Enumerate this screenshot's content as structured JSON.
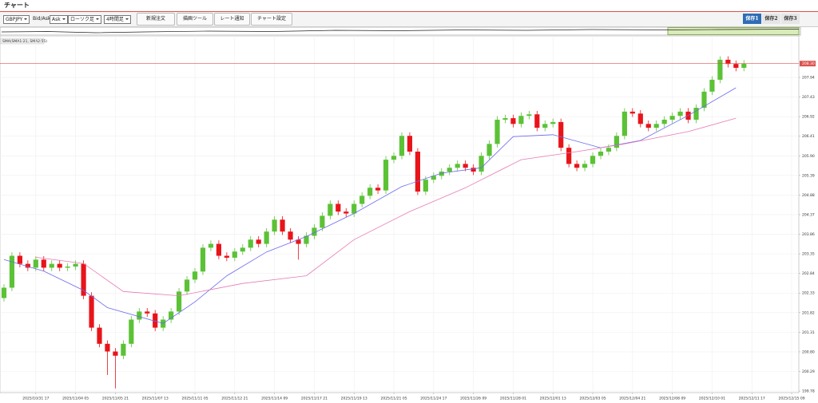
{
  "header": {
    "title": "チャート"
  },
  "toolbar": {
    "symbol": "GBPJPY",
    "bid_ask_label": "Bid/Ask",
    "side": "Ask",
    "chart_style": "ローソク足",
    "timeframe": "4時間足",
    "buttons": [
      "新規注文",
      "描画ツール",
      "レート通知",
      "チャート設定"
    ]
  },
  "saved_tabs": [
    "保存1",
    "保存2",
    "保存3"
  ],
  "chart_data": {
    "type": "candlestick",
    "indicator_label": "SMA(SMA1:21, SMA2:55)",
    "up_color": "#5bc236",
    "down_color": "#e8141a",
    "open": [
      202.2,
      202.47,
      203.3,
      203.09,
      202.99,
      203.2,
      202.99,
      203.09,
      202.99,
      203.02,
      203.09,
      202.26,
      201.43,
      201.01,
      200.81,
      200.7,
      201.01,
      201.64,
      201.85,
      201.8,
      201.43,
      201.64,
      201.85,
      202.37,
      202.68,
      202.89,
      203.51,
      203.61,
      203.3,
      203.25,
      203.41,
      203.51,
      203.72,
      203.61,
      203.93,
      204.24,
      203.93,
      203.72,
      203.61,
      203.82,
      204.03,
      204.34,
      204.65,
      204.45,
      204.4,
      204.65,
      204.86,
      205.07,
      205.0,
      205.8,
      205.9,
      206.42,
      206.01,
      204.97,
      205.28,
      205.38,
      205.49,
      205.59,
      205.69,
      205.59,
      205.49,
      205.9,
      206.21,
      206.84,
      206.88,
      206.73,
      206.94,
      206.98,
      206.63,
      206.73,
      206.78,
      206.11,
      205.69,
      205.59,
      205.69,
      205.9,
      206.01,
      206.11,
      206.42,
      207.05,
      207.0,
      206.73,
      206.63,
      206.73,
      206.84,
      206.94,
      207.05,
      206.84,
      207.15,
      207.57,
      207.88,
      208.4,
      208.29,
      208.19
    ],
    "high": [
      202.56,
      203.39,
      203.39,
      203.18,
      203.29,
      203.29,
      203.18,
      203.18,
      203.11,
      203.18,
      203.18,
      202.35,
      201.52,
      201.1,
      200.9,
      201.1,
      201.73,
      201.94,
      201.94,
      201.89,
      201.73,
      201.94,
      202.46,
      202.77,
      202.98,
      203.6,
      203.7,
      203.7,
      203.39,
      203.5,
      203.6,
      203.81,
      203.81,
      204.02,
      204.33,
      204.33,
      204.02,
      203.81,
      203.91,
      204.12,
      204.43,
      204.74,
      204.74,
      204.54,
      204.74,
      204.95,
      205.16,
      205.16,
      205.89,
      205.99,
      206.51,
      206.51,
      206.1,
      205.37,
      205.47,
      205.58,
      205.68,
      205.78,
      205.78,
      205.68,
      205.99,
      206.3,
      206.93,
      206.97,
      206.97,
      207.03,
      207.07,
      207.07,
      206.82,
      206.87,
      206.87,
      206.2,
      205.78,
      205.78,
      205.99,
      206.1,
      206.2,
      206.51,
      207.14,
      207.14,
      207.09,
      206.82,
      206.82,
      206.93,
      207.03,
      207.14,
      207.14,
      207.24,
      207.66,
      207.97,
      208.49,
      208.49,
      208.38,
      208.39
    ],
    "low": [
      202.11,
      202.38,
      203.0,
      202.9,
      202.9,
      202.9,
      202.9,
      202.9,
      202.9,
      202.93,
      202.17,
      201.34,
      200.92,
      200.2,
      199.85,
      200.61,
      200.92,
      201.55,
      201.71,
      201.34,
      201.34,
      201.55,
      201.76,
      202.28,
      202.59,
      202.8,
      203.42,
      203.21,
      203.16,
      203.16,
      203.32,
      203.42,
      203.52,
      203.52,
      203.84,
      203.84,
      203.63,
      203.2,
      203.52,
      203.73,
      203.94,
      204.25,
      204.36,
      204.31,
      204.31,
      204.56,
      204.77,
      204.91,
      204.91,
      205.71,
      205.81,
      205.92,
      204.88,
      204.88,
      205.19,
      205.29,
      205.4,
      205.5,
      205.5,
      205.4,
      205.4,
      205.81,
      206.12,
      206.75,
      206.64,
      206.64,
      206.85,
      206.54,
      206.54,
      206.64,
      206.02,
      205.6,
      205.5,
      205.5,
      205.6,
      205.81,
      205.92,
      206.02,
      206.33,
      206.91,
      206.64,
      206.54,
      206.54,
      206.64,
      206.75,
      206.85,
      206.75,
      206.75,
      207.06,
      207.48,
      207.79,
      208.2,
      208.1,
      208.1
    ],
    "close": [
      202.47,
      203.3,
      203.09,
      202.99,
      203.2,
      202.99,
      203.09,
      202.99,
      203.02,
      203.09,
      202.26,
      201.43,
      201.01,
      200.81,
      200.7,
      201.01,
      201.64,
      201.85,
      201.8,
      201.43,
      201.64,
      201.85,
      202.37,
      202.68,
      202.89,
      203.51,
      203.61,
      203.3,
      203.25,
      203.41,
      203.51,
      203.72,
      203.61,
      203.93,
      204.24,
      203.93,
      203.72,
      203.61,
      203.82,
      204.03,
      204.34,
      204.65,
      204.45,
      204.4,
      204.65,
      204.86,
      205.07,
      205.0,
      205.8,
      205.9,
      206.42,
      206.01,
      204.97,
      205.28,
      205.38,
      205.49,
      205.59,
      205.69,
      205.59,
      205.49,
      205.9,
      206.21,
      206.84,
      206.88,
      206.73,
      206.94,
      206.98,
      206.63,
      206.73,
      206.78,
      206.11,
      205.69,
      205.59,
      205.69,
      205.9,
      206.01,
      206.11,
      206.42,
      207.05,
      207.0,
      206.73,
      206.63,
      206.73,
      206.84,
      206.94,
      207.05,
      206.84,
      207.15,
      207.57,
      207.88,
      208.4,
      208.29,
      208.19,
      208.3
    ],
    "lines": [
      {
        "color": "#6a6af0",
        "x": [
          0,
          5,
          10,
          13,
          20,
          24,
          28,
          33,
          38,
          44,
          50,
          55,
          60,
          64,
          69,
          75,
          80,
          86,
          92
        ],
        "values": [
          203.2,
          202.9,
          202.4,
          201.95,
          201.54,
          202.1,
          202.78,
          203.4,
          203.8,
          204.4,
          205.1,
          205.45,
          205.59,
          206.4,
          206.45,
          206.11,
          206.3,
          206.95,
          207.67
        ]
      },
      {
        "color": "#e67ab4",
        "x": [
          4,
          10,
          15,
          22,
          30,
          38,
          44,
          51,
          58,
          65,
          72,
          78,
          86,
          92
        ],
        "values": [
          203.26,
          203.1,
          202.37,
          202.26,
          202.58,
          202.78,
          203.72,
          204.45,
          205.07,
          205.8,
          206.01,
          206.21,
          206.53,
          206.88
        ]
      }
    ],
    "current_price": {
      "value": 208.3,
      "label": "208.30"
    },
    "xlim": [
      -0.5,
      99.9
    ],
    "ylim": [
      199.74,
      209.02
    ],
    "yticks": [
      199.78,
      200.29,
      {
        "value": 200.8,
        "label": "200.80"
      },
      201.31,
      201.82,
      202.33,
      202.84,
      203.35,
      203.86,
      204.37,
      204.88,
      205.39,
      {
        "value": 205.9,
        "label": "205.90"
      },
      206.41,
      206.92,
      207.43,
      207.94
    ],
    "xticks": [
      {
        "value": 4,
        "label": "2025/10/31 17"
      },
      {
        "value": 9,
        "label": "2025/11/04 05"
      },
      {
        "value": 14,
        "label": "2025/11/05 21"
      },
      {
        "value": 19,
        "label": "2025/11/07 13"
      },
      {
        "value": 24,
        "label": "2025/11/11 05"
      },
      {
        "value": 29,
        "label": "2025/11/12 21"
      },
      {
        "value": 34,
        "label": "2025/11/14 09"
      },
      {
        "value": 39,
        "label": "2025/11/17 21"
      },
      {
        "value": 44,
        "label": "2025/11/19 13"
      },
      {
        "value": 49,
        "label": "2025/11/21 05"
      },
      {
        "value": 54,
        "label": "2025/11/24 17"
      },
      {
        "value": 59,
        "label": "2025/11/26 09"
      },
      {
        "value": 64,
        "label": "2025/11/28 01"
      },
      {
        "value": 69,
        "label": "2025/12/01 13"
      },
      {
        "value": 74,
        "label": "2025/12/03 05"
      },
      {
        "value": 79,
        "label": "2025/12/04 21"
      },
      {
        "value": 84,
        "label": "2025/12/08 09"
      },
      {
        "value": 89,
        "label": "2025/12/10 01"
      },
      {
        "value": 94,
        "label": "2025/12/11 17"
      },
      {
        "value": 99,
        "label": "2025/12/15 09"
      }
    ],
    "grid": true
  }
}
